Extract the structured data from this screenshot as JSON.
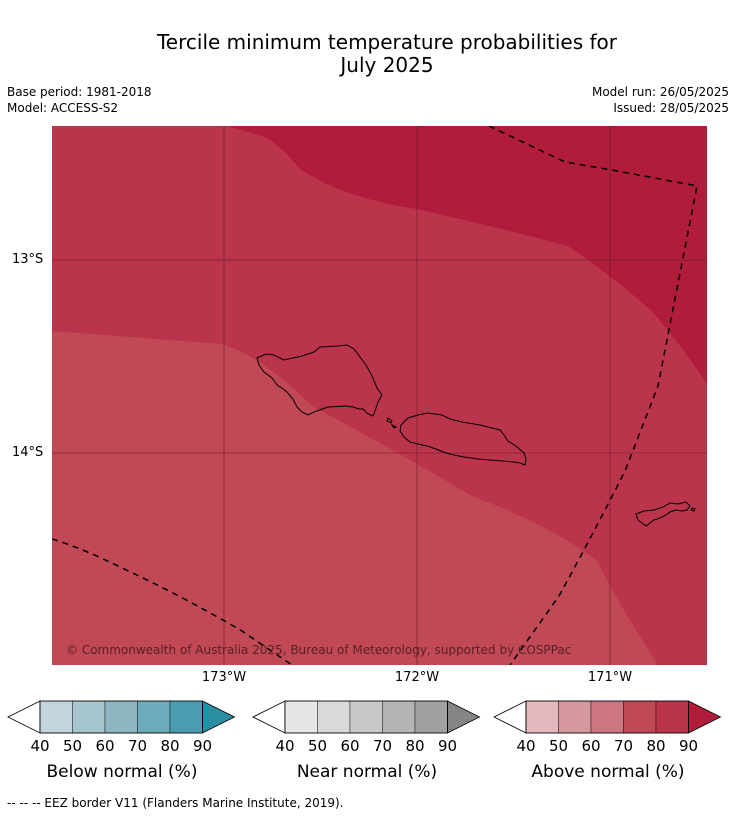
{
  "title_line1": "Tercile minimum temperature probabilities for",
  "title_line2": "July 2025",
  "meta": {
    "base_period": "Base period: 1981-2018",
    "model": "Model: ACCESS-S2",
    "model_run": "Model run: 26/05/2025",
    "issued": "Issued: 28/05/2025"
  },
  "map": {
    "attribution": "© Commonwealth of Australia 2025, Bureau of Meteorology, supported by COSPPac",
    "lat_labels": [
      "13°S",
      "14°S"
    ],
    "lon_labels": [
      "173°W",
      "172°W",
      "171°W"
    ],
    "colors": {
      "above_70": "#c04955",
      "above_80": "#ba344b",
      "above_90": "#b01c3a",
      "grid": "#6a1a26",
      "coast": "#000000",
      "eez": "#000000"
    }
  },
  "legends": [
    {
      "title": "Below normal (%)",
      "ticks": [
        "40",
        "50",
        "60",
        "70",
        "80",
        "90"
      ],
      "colors": [
        "#c2d5dc",
        "#a6c5cc",
        "#8bb6c2",
        "#6dabbb",
        "#4a9db0",
        "#2a8fa2"
      ]
    },
    {
      "title": "Near normal (%)",
      "ticks": [
        "40",
        "50",
        "60",
        "70",
        "80",
        "90"
      ],
      "colors": [
        "#e6e6e6",
        "#d9d9d9",
        "#c8c8c8",
        "#b4b4b4",
        "#a0a0a0",
        "#858585"
      ]
    },
    {
      "title": "Above normal (%)",
      "ticks": [
        "40",
        "50",
        "60",
        "70",
        "80",
        "90"
      ],
      "colors": [
        "#e4b8bd",
        "#d6989f",
        "#cc7780",
        "#c04955",
        "#ba344b",
        "#b01c3a"
      ]
    }
  ],
  "footnote": "--  --  -- EEZ border V11 (Flanders Marine Institute, 2019)."
}
